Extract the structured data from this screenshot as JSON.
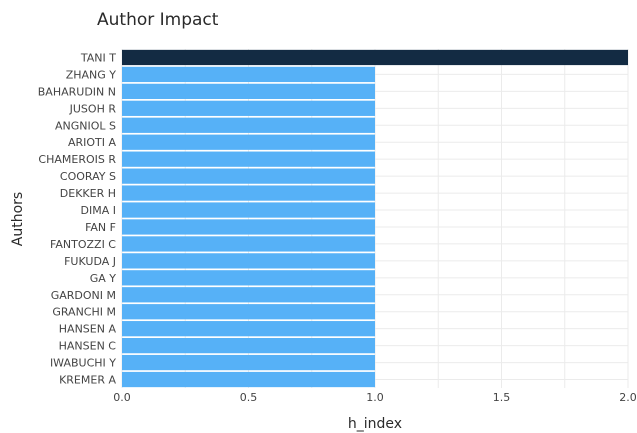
{
  "chart_data": {
    "type": "bar",
    "orientation": "horizontal",
    "title": "Author Impact",
    "xlabel": "h_index",
    "ylabel": "Authors",
    "xlim": [
      0,
      2
    ],
    "xticks": [
      "0.0",
      "0.5",
      "1.0",
      "1.5",
      "2.0"
    ],
    "grid": true,
    "categories": [
      "TANI T",
      "ZHANG Y",
      "BAHARUDIN N",
      "JUSOH R",
      "ANGNIOL S",
      "ARIOTI A",
      "CHAMEROIS R",
      "COORAY S",
      "DEKKER H",
      "DIMA I",
      "FAN F",
      "FANTOZZI C",
      "FUKUDA J",
      "GA Y",
      "GARDONI M",
      "GRANCHI M",
      "HANSEN A",
      "HANSEN C",
      "IWABUCHI Y",
      "KREMER A"
    ],
    "values": [
      2,
      1,
      1,
      1,
      1,
      1,
      1,
      1,
      1,
      1,
      1,
      1,
      1,
      1,
      1,
      1,
      1,
      1,
      1,
      1
    ],
    "colors": {
      "highlight": "#132b43",
      "default": "#56b1f7",
      "grid": "#ebebeb"
    }
  }
}
